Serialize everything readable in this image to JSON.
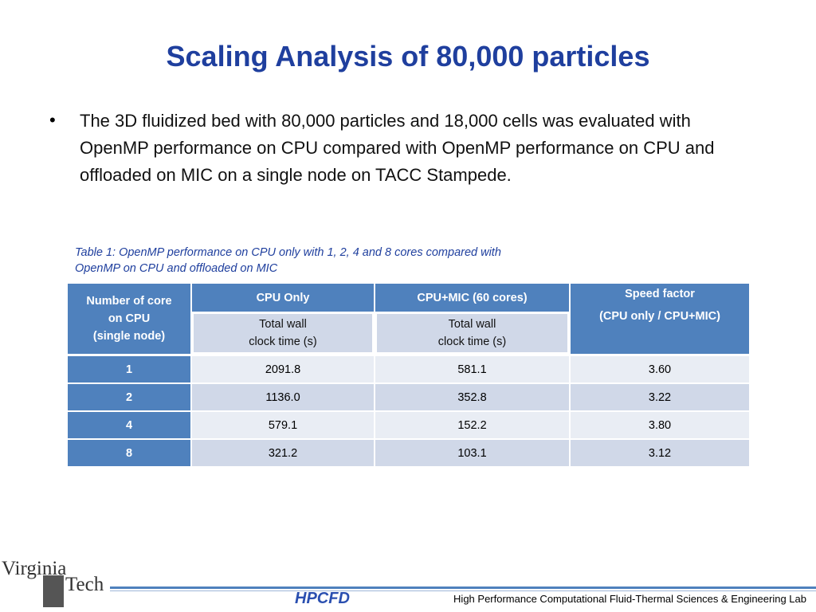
{
  "title": "Scaling Analysis of  80,000 particles",
  "bullet": "The 3D fluidized bed with 80,000 particles and 18,000 cells was evaluated with OpenMP performance on CPU compared with OpenMP performance on CPU and offloaded on MIC on a single node on TACC Stampede.",
  "table": {
    "caption": [
      "Table 1: OpenMP performance on CPU only with 1, 2, 4 and 8 cores compared with",
      "OpenMP on CPU and offloaded on MIC"
    ],
    "header": {
      "cores": [
        "Number of core",
        "on CPU",
        "(single node)"
      ],
      "cpu": "CPU Only",
      "mic": "CPU+MIC (60 cores)",
      "speed": [
        "Speed factor",
        "(CPU only / CPU+MIC)"
      ],
      "cpu_sub": [
        "Total wall",
        "clock time (s)"
      ],
      "mic_sub": [
        "Total wall",
        "clock time (s)"
      ]
    },
    "rows": [
      [
        "1",
        "2091.8",
        "581.1",
        "3.60"
      ],
      [
        "2",
        "1136.0",
        "352.8",
        "3.22"
      ],
      [
        "4",
        "579.1",
        "152.2",
        "3.80"
      ],
      [
        "8",
        "321.2",
        "103.1",
        "3.12"
      ]
    ]
  },
  "footer": {
    "logo_top": "Virginia",
    "logo_bottom": "Tech",
    "lab_logo": "HPCFD",
    "lab": "High Performance Computational Fluid-Thermal Sciences & Engineering Lab"
  }
}
